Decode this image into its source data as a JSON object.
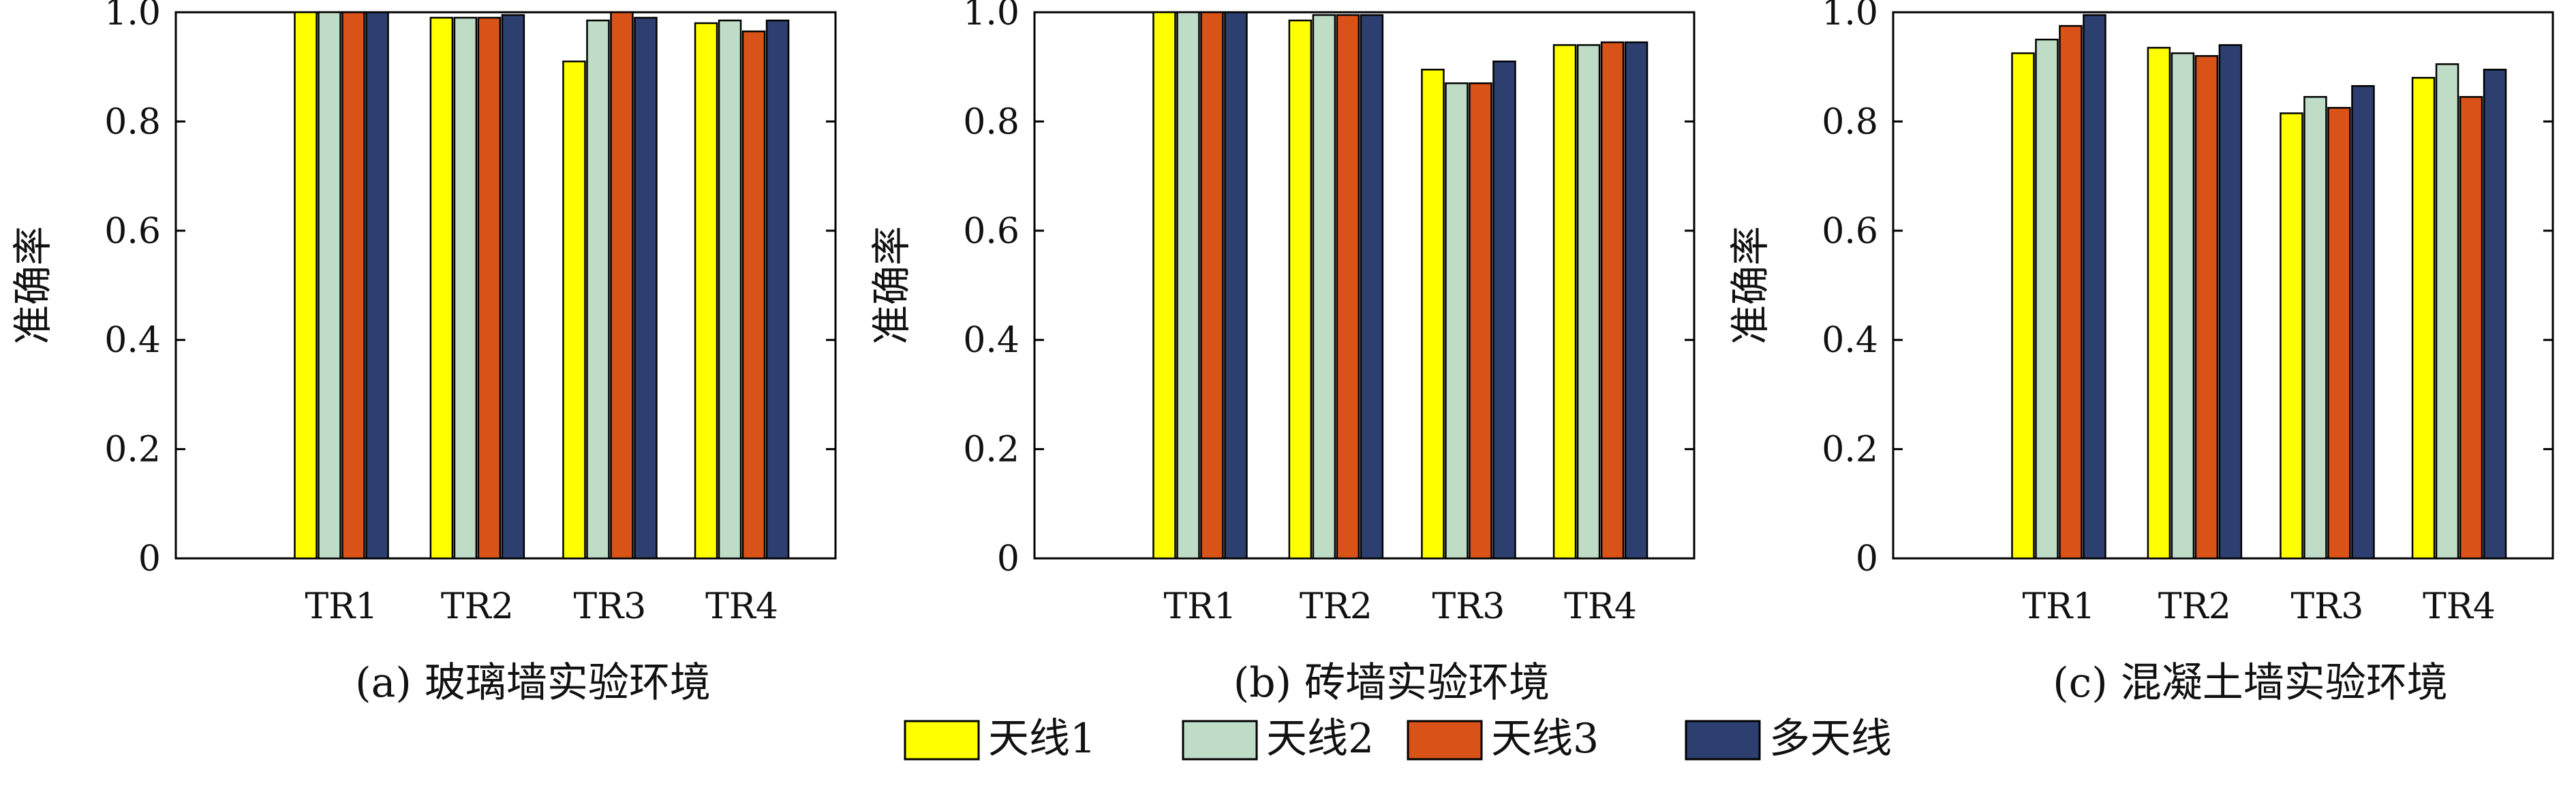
{
  "chart_data": [
    {
      "type": "bar",
      "caption": "(a) 玻璃墙实验环境",
      "ylabel": "准确率",
      "categories": [
        "TR1",
        "TR2",
        "TR3",
        "TR4"
      ],
      "ylim": [
        0,
        1.0
      ],
      "yticks": [
        "0",
        "0.2",
        "0.4",
        "0.6",
        "0.8",
        "1.0"
      ],
      "series": [
        {
          "name": "天线1",
          "values": [
            1.0,
            0.99,
            0.91,
            0.98
          ]
        },
        {
          "name": "天线2",
          "values": [
            1.0,
            0.99,
            0.985,
            0.985
          ]
        },
        {
          "name": "天线3",
          "values": [
            1.0,
            0.99,
            1.0,
            0.965
          ]
        },
        {
          "name": "多天线",
          "values": [
            1.0,
            0.995,
            0.99,
            0.985
          ]
        }
      ]
    },
    {
      "type": "bar",
      "caption": "(b) 砖墙实验环境",
      "ylabel": "准确率",
      "categories": [
        "TR1",
        "TR2",
        "TR3",
        "TR4"
      ],
      "ylim": [
        0,
        1.0
      ],
      "yticks": [
        "0",
        "0.2",
        "0.4",
        "0.6",
        "0.8",
        "1.0"
      ],
      "series": [
        {
          "name": "天线1",
          "values": [
            1.0,
            0.985,
            0.895,
            0.94
          ]
        },
        {
          "name": "天线2",
          "values": [
            1.0,
            0.995,
            0.87,
            0.94
          ]
        },
        {
          "name": "天线3",
          "values": [
            1.0,
            0.995,
            0.87,
            0.945
          ]
        },
        {
          "name": "多天线",
          "values": [
            1.0,
            0.995,
            0.91,
            0.945
          ]
        }
      ]
    },
    {
      "type": "bar",
      "caption": "(c) 混凝土墙实验环境",
      "ylabel": "准确率",
      "categories": [
        "TR1",
        "TR2",
        "TR3",
        "TR4"
      ],
      "ylim": [
        0,
        1.0
      ],
      "yticks": [
        "0",
        "0.2",
        "0.4",
        "0.6",
        "0.8",
        "1.0"
      ],
      "series": [
        {
          "name": "天线1",
          "values": [
            0.925,
            0.935,
            0.815,
            0.88
          ]
        },
        {
          "name": "天线2",
          "values": [
            0.95,
            0.925,
            0.845,
            0.905
          ]
        },
        {
          "name": "天线3",
          "values": [
            0.975,
            0.92,
            0.825,
            0.845
          ]
        },
        {
          "name": "多天线",
          "values": [
            0.995,
            0.94,
            0.865,
            0.895
          ]
        }
      ]
    }
  ],
  "legend": {
    "placement": "bottom-center",
    "items": [
      {
        "label": "天线1",
        "color": "#ffff00"
      },
      {
        "label": "天线2",
        "color": "#bfdcc7"
      },
      {
        "label": "天线3",
        "color": "#d95319"
      },
      {
        "label": "多天线",
        "color": "#2d3f6e"
      }
    ]
  }
}
